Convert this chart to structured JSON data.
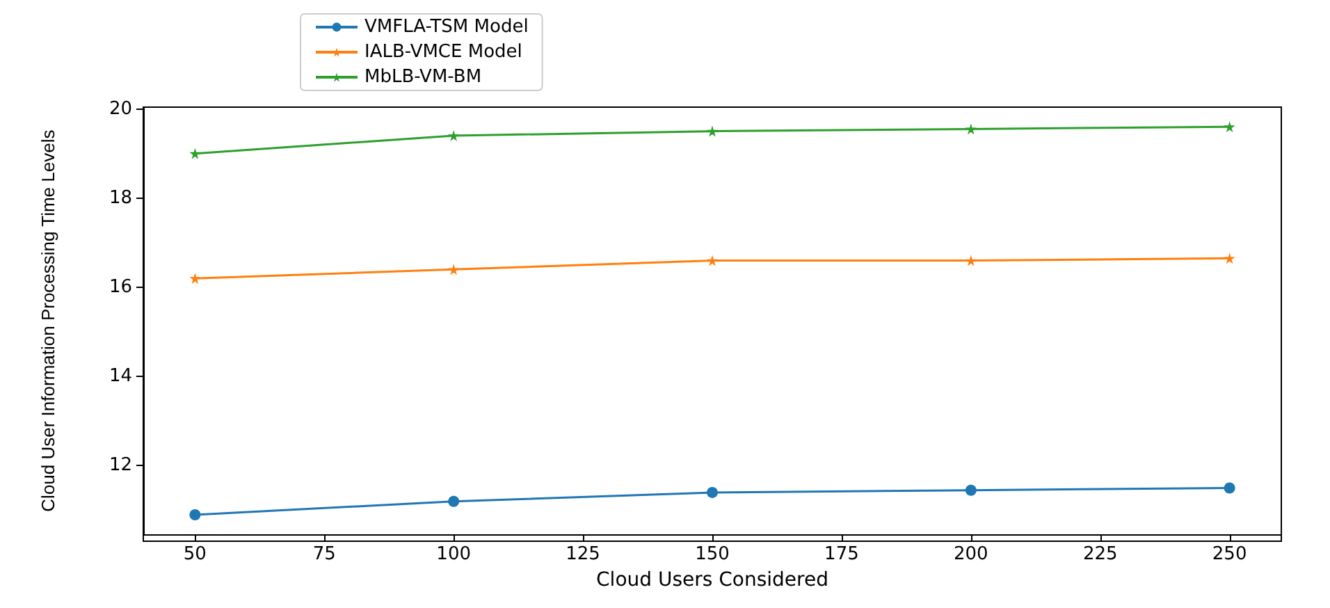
{
  "chart_data": {
    "type": "line",
    "xlabel": "Cloud Users Considered",
    "ylabel": "Cloud User Information Processing Time Levels",
    "x": [
      50,
      100,
      150,
      200,
      250
    ],
    "series": [
      {
        "name": "VMFLA-TSM Model",
        "color": "#1f77b4",
        "marker": "circle",
        "values": [
          10.9,
          11.2,
          11.4,
          11.45,
          11.5
        ]
      },
      {
        "name": "IALB-VMCE Model",
        "color": "#ff7f0e",
        "marker": "star",
        "values": [
          16.2,
          16.4,
          16.6,
          16.6,
          16.65
        ]
      },
      {
        "name": "MbLB-VM-BM",
        "color": "#2ca02c",
        "marker": "star",
        "values": [
          19.0,
          19.4,
          19.5,
          19.55,
          19.6
        ]
      }
    ],
    "xlim": [
      40,
      260
    ],
    "xticks": [
      50,
      75,
      100,
      125,
      150,
      175,
      200,
      225,
      250
    ],
    "ylim": [
      10.46,
      20.04
    ],
    "yticks": [
      12,
      14,
      16,
      18,
      20
    ],
    "grid": false,
    "legend": "top",
    "line_style": "solid"
  }
}
